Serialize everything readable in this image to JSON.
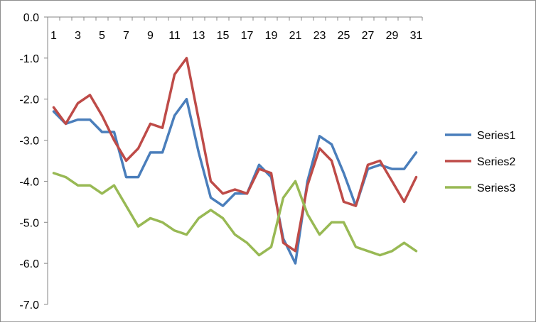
{
  "chart_data": {
    "type": "line",
    "x": [
      1,
      2,
      3,
      4,
      5,
      6,
      7,
      8,
      9,
      10,
      11,
      12,
      13,
      14,
      15,
      16,
      17,
      18,
      19,
      20,
      21,
      22,
      23,
      24,
      25,
      26,
      27,
      28,
      29,
      30,
      31
    ],
    "x_tick_labels": [
      "1",
      "3",
      "5",
      "7",
      "9",
      "11",
      "13",
      "15",
      "17",
      "19",
      "21",
      "23",
      "25",
      "27",
      "29",
      "31"
    ],
    "y_tick_labels": [
      "0.0",
      "-1.0",
      "-2.0",
      "-3.0",
      "-4.0",
      "-5.0",
      "-6.0",
      "-7.0"
    ],
    "ylim": [
      -7,
      0
    ],
    "grid": "none",
    "legend_position": "right",
    "series": [
      {
        "name": "Series1",
        "color": "#4a7ebb",
        "values": [
          -2.3,
          -2.6,
          -2.5,
          -2.5,
          -2.8,
          -2.8,
          -3.9,
          -3.9,
          -3.3,
          -3.3,
          -2.4,
          -2.0,
          -3.3,
          -4.4,
          -4.6,
          -4.3,
          -4.3,
          -3.6,
          -3.9,
          -5.4,
          -6.0,
          -4.0,
          -2.9,
          -3.1,
          -3.8,
          -4.6,
          -3.7,
          -3.6,
          -3.7,
          -3.7,
          -3.3
        ]
      },
      {
        "name": "Series2",
        "color": "#be4b48",
        "values": [
          -2.2,
          -2.6,
          -2.1,
          -1.9,
          -2.4,
          -3.0,
          -3.5,
          -3.2,
          -2.6,
          -2.7,
          -1.4,
          -1.0,
          -2.5,
          -4.0,
          -4.3,
          -4.2,
          -4.3,
          -3.7,
          -3.8,
          -5.5,
          -5.7,
          -4.1,
          -3.2,
          -3.5,
          -4.5,
          -4.6,
          -3.6,
          -3.5,
          -4.0,
          -4.5,
          -3.9
        ]
      },
      {
        "name": "Series3",
        "color": "#98b954",
        "values": [
          -3.8,
          -3.9,
          -4.1,
          -4.1,
          -4.3,
          -4.1,
          -4.6,
          -5.1,
          -4.9,
          -5.0,
          -5.2,
          -5.3,
          -4.9,
          -4.7,
          -4.9,
          -5.3,
          -5.5,
          -5.8,
          -5.6,
          -4.4,
          -4.0,
          -4.8,
          -5.3,
          -5.0,
          -5.0,
          -5.6,
          -5.7,
          -5.8,
          -5.7,
          -5.5,
          -5.7
        ]
      }
    ]
  }
}
